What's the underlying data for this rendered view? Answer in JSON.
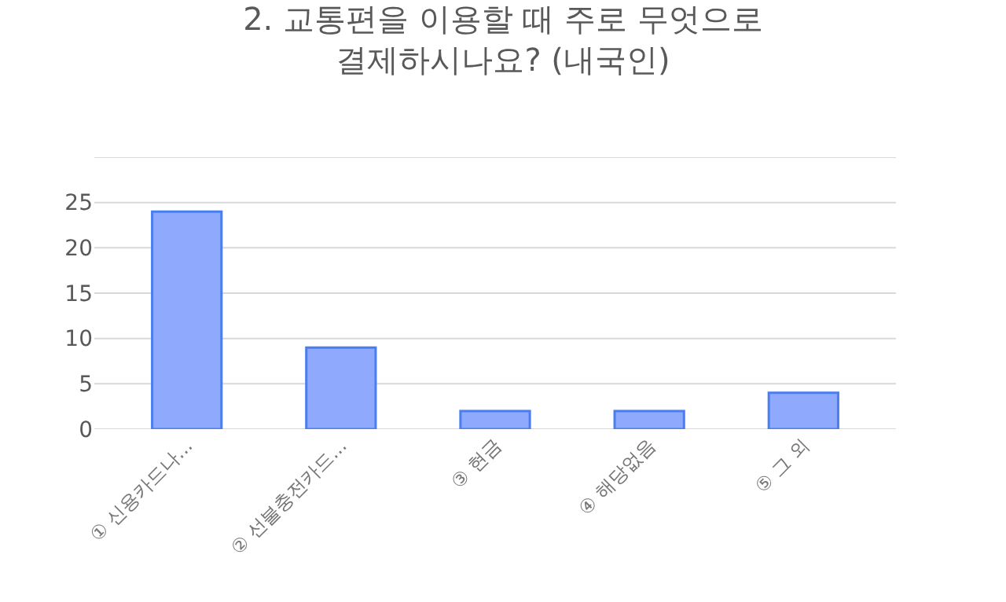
{
  "chart_data": {
    "type": "bar",
    "title": "2. 교통편을 이용할 때 주로 무엇으로\n결제하시나요? (내국인)",
    "categories": [
      "① 신용카드나...",
      "② 선불충전카드...",
      "③ 현금",
      "④ 해당없음",
      "⑤ 그 외"
    ],
    "values": [
      24,
      9,
      2,
      2,
      4
    ],
    "color": "#8faafc",
    "ylim": [
      0,
      30
    ],
    "yticks": [
      0,
      5,
      10,
      15,
      20,
      25,
      {
        "value": 30,
        "label": null
      }
    ],
    "grid": "y"
  }
}
